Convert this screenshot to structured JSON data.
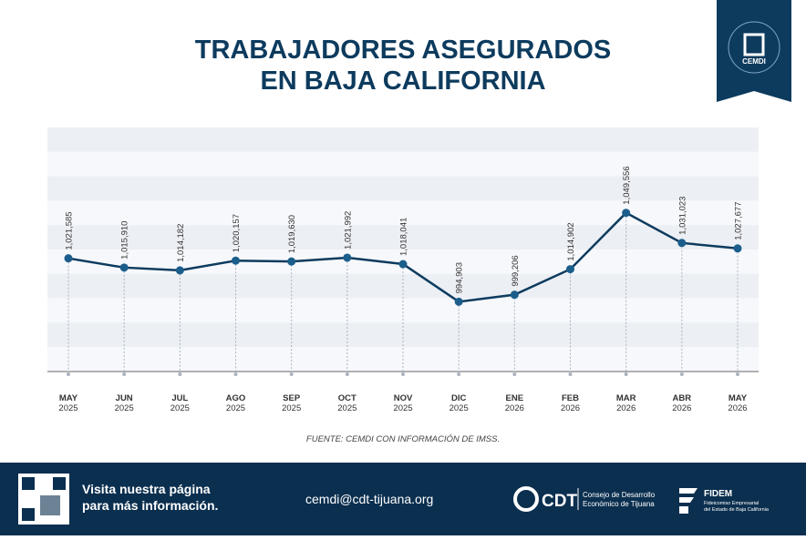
{
  "chart_data": {
    "type": "line",
    "title": "TRABAJADORES ASEGURADOS",
    "subtitle": "EN BAJA CALIFORNIA",
    "categories": [
      "MAY 2025",
      "JUN 2025",
      "JUL 2025",
      "AGO 2025",
      "SEP 2025",
      "OCT 2025",
      "NOV 2025",
      "DIC 2025",
      "ENE 2026",
      "FEB 2026",
      "MAR 2026",
      "ABR 2026",
      "MAY 2026"
    ],
    "values": [
      1021585,
      1015910,
      1014182,
      1020157,
      1019630,
      1021992,
      1018041,
      994903,
      999206,
      1014902,
      1049556,
      1031023,
      1027677
    ],
    "value_labels": [
      "1,021,585",
      "1,015,910",
      "1,014,182",
      "1,020,157",
      "1,019,630",
      "1,021,992",
      "1,018,041",
      "994,903",
      "999,206",
      "1,014,902",
      "1,049,556",
      "1,031,023",
      "1,027,677"
    ],
    "color": "#0d3b5e",
    "marker_color": "#1b5e8c",
    "ylim": [
      952000,
      1102000
    ],
    "source": "FUENTE: CEMDI CON INFORMACIÓN DE IMSS."
  },
  "badge": {
    "label": "CEMDI"
  },
  "footer": {
    "line1": "Visita nuestra página",
    "line2": "para más información.",
    "email": "cemdi@cdt-tijuana.org",
    "cdt": "CDT",
    "cdt_line1": "Consejo de Desarrollo",
    "cdt_line2": "Económico de Tijuana",
    "fidem": "FIDEM",
    "fidem_line1": "Fideicomiso Empresarial",
    "fidem_line2": "del Estado de Baja California"
  }
}
